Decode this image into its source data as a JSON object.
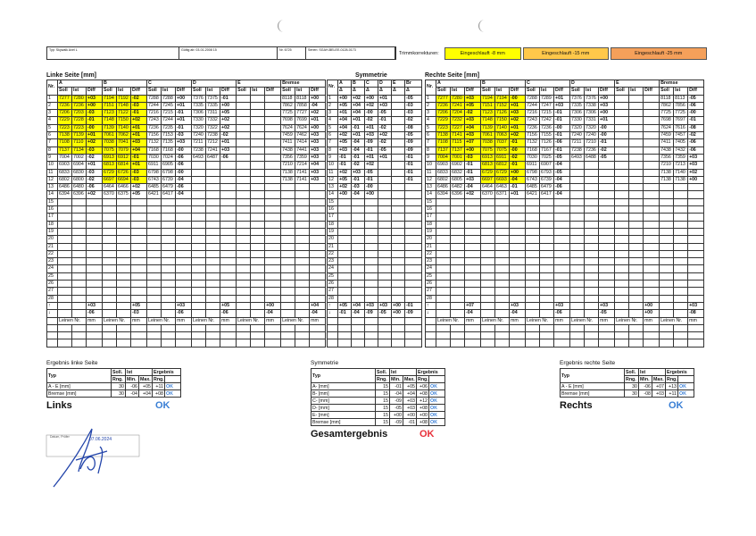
{
  "header": {
    "fields": [
      "Typ: Skywalk Axel L",
      "Gültig ab: 03-01-2008 15",
      "Nr. 6725",
      "Serien: SGAH-BELEE-0128-0173"
    ]
  },
  "trim": {
    "label": "Trimmkorrekturen:",
    "items": [
      {
        "text": "Eingeschlauft -8 mm",
        "color": "#ffff00"
      },
      {
        "text": "Eingeschlauft -15 mm",
        "color": "#ffc84a"
      },
      {
        "text": "Eingeschlauft -25 mm",
        "color": "#f5a05a"
      }
    ]
  },
  "highlight_color": "#ffff00",
  "nr_label": "Nr.",
  "sub_labels": [
    "Soll",
    "Ist",
    "Diff"
  ],
  "leinen_labels": [
    "Leinen Nr.",
    "mm"
  ],
  "row_numbers": [
    1,
    2,
    3,
    4,
    5,
    6,
    7,
    8,
    9,
    10,
    11,
    12,
    13,
    14,
    15,
    16,
    17,
    18,
    19,
    20,
    21,
    22,
    23,
    24,
    25,
    26,
    27,
    28,
    "↑",
    "↓"
  ],
  "left": {
    "title": "Linke Seite [mm]",
    "groups": [
      {
        "name": "A",
        "highlight_rows": [
          0,
          1,
          2,
          3,
          4,
          5,
          6,
          7
        ],
        "rows": [
          [
            "7277",
            "7280",
            "+03"
          ],
          [
            "7236",
            "7236",
            "+00"
          ],
          [
            "7206",
            "7203",
            "-03"
          ],
          [
            "7229",
            "7228",
            "-01"
          ],
          [
            "7223",
            "7223",
            "-00"
          ],
          [
            "7138",
            "7139",
            "+01"
          ],
          [
            "7108",
            "7110",
            "+02"
          ],
          [
            "7137",
            "7134",
            "-03"
          ],
          [
            "7004",
            "7002",
            "-02"
          ],
          [
            "6903",
            "6904",
            "+01"
          ],
          [
            "6833",
            "6830",
            "-03"
          ],
          [
            "6802",
            "6800",
            "-02"
          ],
          [
            "6486",
            "6480",
            "-06"
          ],
          [
            "6394",
            "6396",
            "+02"
          ]
        ],
        "max": "+03",
        "min": "-06"
      },
      {
        "name": "B",
        "highlight_rows": [
          0,
          1,
          2,
          3,
          4,
          5,
          6,
          7,
          8,
          9,
          10,
          11
        ],
        "rows": [
          [
            "7194",
            "7192",
            "-02"
          ],
          [
            "7151",
            "7148",
            "-03"
          ],
          [
            "7123",
            "7122",
            "-01"
          ],
          [
            "7148",
            "7150",
            "+02"
          ],
          [
            "7139",
            "7140",
            "+01"
          ],
          [
            "7061",
            "7062",
            "+01"
          ],
          [
            "7038",
            "7041",
            "+03"
          ],
          [
            "7075",
            "7079",
            "+04"
          ],
          [
            "6913",
            "6912",
            "-01"
          ],
          [
            "6813",
            "6814",
            "+01"
          ],
          [
            "6729",
            "6726",
            "-03"
          ],
          [
            "6697",
            "6694",
            "-03"
          ],
          [
            "6464",
            "6466",
            "+02"
          ],
          [
            "6370",
            "6375",
            "+05"
          ]
        ],
        "max": "+05",
        "min": "-03"
      },
      {
        "name": "C",
        "rows": [
          [
            "7288",
            "7288",
            "+00"
          ],
          [
            "7244",
            "7245",
            "+01"
          ],
          [
            "7216",
            "7215",
            "-01"
          ],
          [
            "7243",
            "7244",
            "+01"
          ],
          [
            "7236",
            "7235",
            "-01"
          ],
          [
            "7156",
            "7153",
            "-03"
          ],
          [
            "7132",
            "7135",
            "+03"
          ],
          [
            "7168",
            "7168",
            "-00"
          ],
          [
            "7030",
            "7024",
            "-06"
          ],
          [
            "6911",
            "6905",
            "-06"
          ],
          [
            "6798",
            "6798",
            "-00"
          ],
          [
            "6743",
            "6739",
            "-04"
          ],
          [
            "6485",
            "6479",
            "-06"
          ],
          [
            "6421",
            "6417",
            "-04"
          ]
        ],
        "max": "+03",
        "min": "-06"
      },
      {
        "name": "D",
        "rows": [
          [
            "7376",
            "7375",
            "-01"
          ],
          [
            "7335",
            "7335",
            "+00"
          ],
          [
            "7306",
            "7311",
            "+05"
          ],
          [
            "7330",
            "7332",
            "+02"
          ],
          [
            "7320",
            "7322",
            "+02"
          ],
          [
            "7240",
            "7238",
            "-02"
          ],
          [
            "7211",
            "7212",
            "+01"
          ],
          [
            "7238",
            "7241",
            "+03"
          ],
          [
            "6493",
            "6487",
            "-06"
          ]
        ],
        "max": "+05",
        "min": "-06"
      },
      {
        "name": "E",
        "rows": [],
        "max": "+00",
        "min": "-04"
      },
      {
        "name": "Bremse",
        "rows": [
          [
            "8118",
            "8118",
            "+00"
          ],
          [
            "7862",
            "7858",
            "-04"
          ],
          [
            "7725",
            "7727",
            "+02"
          ],
          [
            "7698",
            "7699",
            "+01"
          ],
          [
            "7624",
            "7624",
            "+00"
          ],
          [
            "7459",
            "7462",
            "+03"
          ],
          [
            "7411",
            "7414",
            "+03"
          ],
          [
            "7438",
            "7441",
            "+03"
          ],
          [
            "7356",
            "7359",
            "+03"
          ],
          [
            "7210",
            "7214",
            "+04"
          ],
          [
            "7138",
            "7141",
            "+03"
          ],
          [
            "7138",
            "7141",
            "+03"
          ]
        ],
        "max": "+04",
        "min": "-04"
      }
    ]
  },
  "symmetry": {
    "title": "Symmetrie",
    "delta": "Δ",
    "names": [
      "A",
      "B",
      "C",
      "D",
      "E",
      "Br"
    ],
    "rows": [
      [
        "+00",
        "+02",
        "+00",
        "+01",
        null,
        "-05"
      ],
      [
        "+05",
        "+04",
        "+02",
        "+03",
        null,
        "-03"
      ],
      [
        "+01",
        "+04",
        "-00",
        "-05",
        null,
        "-03"
      ],
      [
        "+04",
        "+01",
        "-02",
        "-01",
        null,
        "-02"
      ],
      [
        "+04",
        "-01",
        "+01",
        "-02",
        null,
        "-08"
      ],
      [
        "+02",
        "+01",
        "+03",
        "+02",
        null,
        "-05"
      ],
      [
        "+05",
        "-04",
        "-09",
        "-02",
        null,
        "-09"
      ],
      [
        "+03",
        "-04",
        "-01",
        "-05",
        null,
        "-09"
      ],
      [
        "-01",
        "-01",
        "+01",
        "+01",
        null,
        "-01"
      ],
      [
        "-01",
        "-02",
        "+02",
        null,
        null,
        "-01"
      ],
      [
        "+02",
        "+03",
        "-05",
        null,
        null,
        "-01"
      ],
      [
        "+05",
        "-01",
        "-01",
        null,
        null,
        "-01"
      ],
      [
        "+02",
        "-03",
        "-00",
        null,
        null,
        null
      ],
      [
        "+00",
        "-04",
        "+00",
        null,
        null,
        null
      ]
    ],
    "max": [
      "+05",
      "+04",
      "+03",
      "+03",
      "+00",
      "-01"
    ],
    "min": [
      "-01",
      "-04",
      "-09",
      "-05",
      "+00",
      "-09"
    ]
  },
  "right": {
    "title": "Rechte Seite [mm]",
    "groups": [
      {
        "name": "A",
        "highlight_rows": [
          0,
          1,
          2,
          3,
          4,
          5,
          6,
          7,
          8
        ],
        "rows": [
          [
            "7277",
            "7280",
            "+03"
          ],
          [
            "7236",
            "7241",
            "+05"
          ],
          [
            "7206",
            "7204",
            "-02"
          ],
          [
            "7229",
            "7232",
            "+03"
          ],
          [
            "7223",
            "7227",
            "+04"
          ],
          [
            "7138",
            "7141",
            "+03"
          ],
          [
            "7108",
            "7115",
            "+07"
          ],
          [
            "7137",
            "7137",
            "+00"
          ],
          [
            "7004",
            "7001",
            "-03"
          ],
          [
            "6903",
            "6902",
            "-01"
          ],
          [
            "6833",
            "6832",
            "-01"
          ],
          [
            "6802",
            "6805",
            "+03"
          ],
          [
            "6486",
            "6482",
            "-04"
          ],
          [
            "6394",
            "6396",
            "+02"
          ]
        ],
        "max": "+07",
        "min": "-04"
      },
      {
        "name": "B",
        "highlight_rows": [
          0,
          1,
          2,
          3,
          4,
          5,
          6,
          7,
          8,
          9,
          10,
          11
        ],
        "rows": [
          [
            "7194",
            "7194",
            "-00"
          ],
          [
            "7151",
            "7152",
            "+01"
          ],
          [
            "7123",
            "7126",
            "+03"
          ],
          [
            "7148",
            "7150",
            "+02"
          ],
          [
            "7139",
            "7140",
            "+01"
          ],
          [
            "7061",
            "7063",
            "+02"
          ],
          [
            "7038",
            "7037",
            "-01"
          ],
          [
            "7075",
            "7075",
            "-00"
          ],
          [
            "6913",
            "6911",
            "-02"
          ],
          [
            "6813",
            "6812",
            "-01"
          ],
          [
            "6729",
            "6729",
            "+00"
          ],
          [
            "6697",
            "6693",
            "-04"
          ],
          [
            "6464",
            "6463",
            "-01"
          ],
          [
            "6370",
            "6371",
            "+01"
          ]
        ],
        "max": "+03",
        "min": "-04"
      },
      {
        "name": "C",
        "rows": [
          [
            "7288",
            "7289",
            "+01"
          ],
          [
            "7244",
            "7247",
            "+03"
          ],
          [
            "7216",
            "7215",
            "-01"
          ],
          [
            "7243",
            "7242",
            "-01"
          ],
          [
            "7236",
            "7236",
            "-00"
          ],
          [
            "7156",
            "7155",
            "-01"
          ],
          [
            "7132",
            "7126",
            "-06"
          ],
          [
            "7168",
            "7167",
            "-01"
          ],
          [
            "7030",
            "7025",
            "-05"
          ],
          [
            "6911",
            "6907",
            "-04"
          ],
          [
            "6798",
            "6793",
            "-05"
          ],
          [
            "6743",
            "6739",
            "-04"
          ],
          [
            "6485",
            "6479",
            "-06"
          ],
          [
            "6421",
            "6417",
            "-04"
          ]
        ],
        "max": "+03",
        "min": "-06"
      },
      {
        "name": "D",
        "rows": [
          [
            "7376",
            "7376",
            "+00"
          ],
          [
            "7335",
            "7338",
            "+03"
          ],
          [
            "7306",
            "7306",
            "+00"
          ],
          [
            "7330",
            "7331",
            "+01"
          ],
          [
            "7320",
            "7320",
            "-00"
          ],
          [
            "7240",
            "7240",
            "-00"
          ],
          [
            "7211",
            "7210",
            "-01"
          ],
          [
            "7238",
            "7236",
            "-02"
          ],
          [
            "6493",
            "6488",
            "-05"
          ]
        ],
        "max": "+03",
        "min": "-05"
      },
      {
        "name": "E",
        "rows": [],
        "max": "+00",
        "min": "+00"
      },
      {
        "name": "Bremse",
        "rows": [
          [
            "8118",
            "8113",
            "-05"
          ],
          [
            "7862",
            "7856",
            "-06"
          ],
          [
            "7725",
            "7725",
            "-00"
          ],
          [
            "7698",
            "7697",
            "-01"
          ],
          [
            "7624",
            "7616",
            "-08"
          ],
          [
            "7459",
            "7457",
            "-02"
          ],
          [
            "7411",
            "7405",
            "-06"
          ],
          [
            "7438",
            "7432",
            "-06"
          ],
          [
            "7356",
            "7359",
            "+03"
          ],
          [
            "7210",
            "7213",
            "+03"
          ],
          [
            "7138",
            "7140",
            "+02"
          ],
          [
            "7138",
            "7138",
            "+00"
          ]
        ],
        "max": "+03",
        "min": "-08"
      }
    ]
  },
  "results": {
    "headers": [
      "Typ",
      "Soll.",
      "Ist",
      "Ergebnis"
    ],
    "sub_headers": [
      "Rng.",
      "Min.",
      "Max.",
      "Rng."
    ],
    "left": {
      "title": "Ergebnis linke Seite",
      "rows": [
        [
          "A - E [mm]",
          "30",
          "-06",
          "+05",
          "+11",
          "OK"
        ],
        [
          "Bremse [mm]",
          "30",
          "-04",
          "+04",
          "+08",
          "OK"
        ]
      ],
      "verdict_label": "Links",
      "verdict": "OK",
      "verdict_color": "#3a7fd5"
    },
    "symmetry": {
      "title": "Symmetrie",
      "rows": [
        [
          "A- [mm]",
          "15",
          "-01",
          "+05",
          "+06",
          "OK"
        ],
        [
          "B- [mm]",
          "15",
          "-04",
          "+04",
          "+08",
          "OK"
        ],
        [
          "C- [mm]",
          "15",
          "-09",
          "+03",
          "+12",
          "OK"
        ],
        [
          "D- [mm]",
          "15",
          "-05",
          "+03",
          "+08",
          "OK"
        ],
        [
          "E- [mm]",
          "15",
          "+00",
          "+00",
          "+00",
          "OK"
        ],
        [
          "Bremse [mm]",
          "15",
          "-09",
          "-01",
          "+08",
          "OK"
        ]
      ],
      "verdict_label": "Gesamtergebnis",
      "verdict": "OK",
      "verdict_color": "#e8303a"
    },
    "right": {
      "title": "Ergebnis rechte Seite",
      "rows": [
        [
          "A - E [mm]",
          "30",
          "-06",
          "+07",
          "+13",
          "OK"
        ],
        [
          "Bremse [mm]",
          "30",
          "-08",
          "+03",
          "+11",
          "OK"
        ]
      ],
      "verdict_label": "Rechts",
      "verdict": "OK",
      "verdict_color": "#3a7fd5"
    }
  },
  "signature": {
    "label": "Datum, Prüfer",
    "date": "07.06.2024"
  }
}
